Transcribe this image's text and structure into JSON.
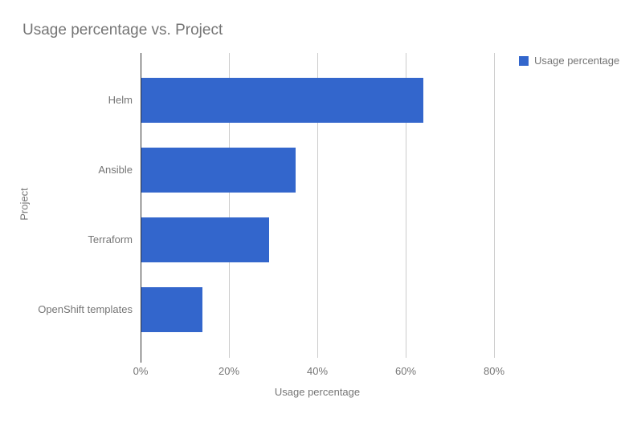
{
  "chart_data": {
    "type": "bar",
    "orientation": "horizontal",
    "title": "Usage percentage vs. Project",
    "categories": [
      "Helm",
      "Ansible",
      "Terraform",
      "OpenShift templates"
    ],
    "values": [
      64,
      35,
      29,
      14
    ],
    "xlabel": "Usage percentage",
    "ylabel": "Project",
    "xlim": [
      0,
      80
    ],
    "xticks": [
      {
        "value": 0,
        "label": "0%"
      },
      {
        "value": 20,
        "label": "20%"
      },
      {
        "value": 40,
        "label": "40%"
      },
      {
        "value": 60,
        "label": "60%"
      },
      {
        "value": 80,
        "label": "80%"
      }
    ],
    "legend": {
      "position": "top-right",
      "label": "Usage percentage"
    },
    "grid": true,
    "colors": {
      "bar": "#3366cc",
      "gridline": "#cccccc",
      "baseline": "#333333",
      "text": "#757575",
      "background": "#ffffff"
    }
  }
}
